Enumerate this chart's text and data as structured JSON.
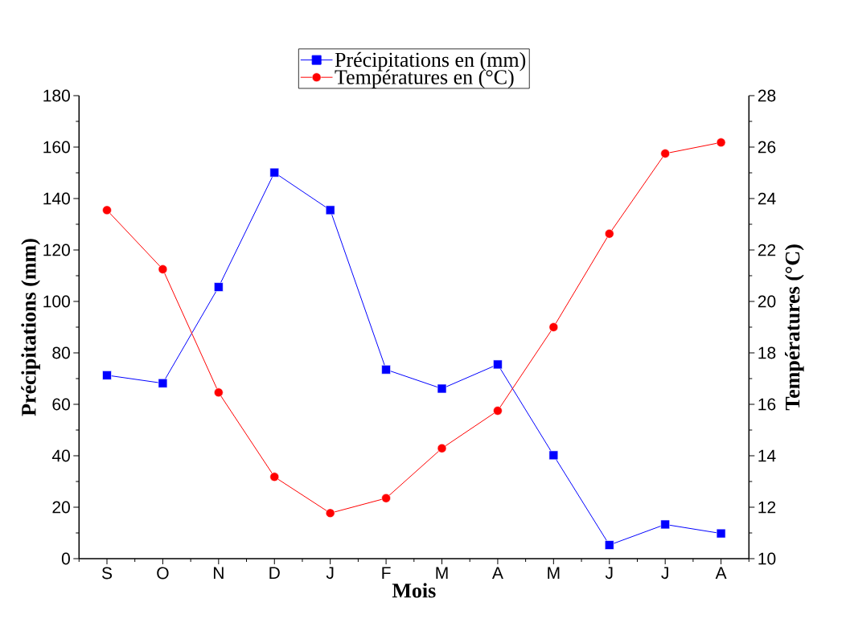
{
  "chart_data": {
    "type": "line",
    "xlabel": "Mois",
    "ylabel": "Précipitations (mm)",
    "y2label": "Températures (°C)",
    "categories": [
      "S",
      "O",
      "N",
      "D",
      "J",
      "F",
      "M",
      "A",
      "M",
      "J",
      "J",
      "A"
    ],
    "series": [
      {
        "name": "Précipitations en (mm)",
        "color": "#0000ff",
        "marker": "square",
        "values": [
          71.3,
          68.2,
          105.6,
          150.1,
          135.5,
          73.5,
          66.1,
          75.5,
          40.2,
          5.3,
          13.3,
          9.8
        ]
      },
      {
        "name": "Températures en (°C)",
        "color": "#ff0000",
        "marker": "circle",
        "axis": "y2",
        "values": [
          23.55,
          21.25,
          16.46,
          13.18,
          11.77,
          12.35,
          14.29,
          15.75,
          19.0,
          22.63,
          25.75,
          26.18
        ]
      }
    ],
    "ylim": [
      0,
      180
    ],
    "yticks": [
      0,
      20,
      40,
      60,
      80,
      100,
      120,
      140,
      160,
      180
    ],
    "y2lim": [
      10,
      28
    ],
    "y2ticks": [
      10,
      12,
      14,
      16,
      18,
      20,
      22,
      24,
      26,
      28
    ],
    "legend": "top",
    "grid": false,
    "line_style": "solid"
  }
}
